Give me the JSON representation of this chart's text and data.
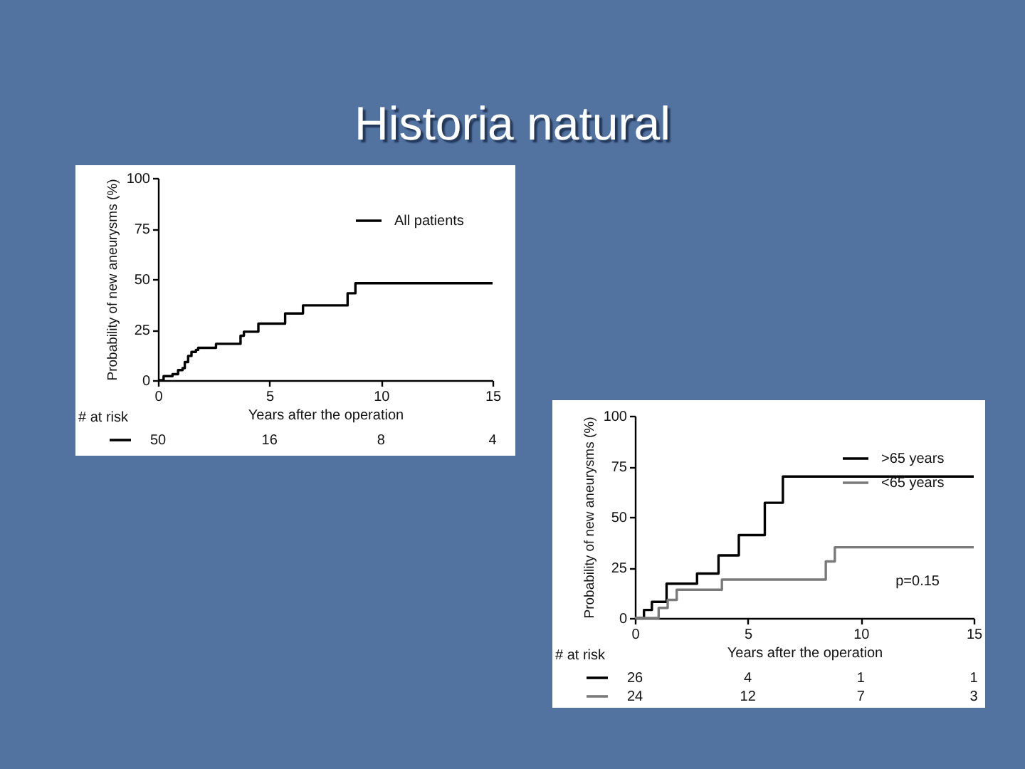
{
  "chart_data": [
    {
      "type": "step",
      "title": "Historia natural",
      "xlabel": "Years after the operation",
      "ylabel": "Probability of new aneurysms (%)",
      "xlim": [
        0,
        15
      ],
      "xticks": [
        0,
        5,
        10,
        15
      ],
      "ylim": [
        0,
        100
      ],
      "yticks": [
        0,
        25,
        50,
        75,
        100
      ],
      "legend": "top right",
      "series": [
        {
          "name": "All patients",
          "color": "#000000",
          "x": [
            0,
            0.25,
            0.65,
            0.9,
            1.1,
            1.2,
            1.35,
            1.5,
            1.7,
            1.8,
            2.6,
            3.7,
            3.85,
            4.5,
            5.7,
            6.5,
            8.5,
            8.85,
            15
          ],
          "values": [
            0,
            2,
            3,
            5,
            6,
            9,
            12,
            14,
            15,
            16,
            18,
            22,
            24,
            28,
            33,
            37,
            43,
            48,
            48
          ]
        }
      ],
      "annotations": [
        "# at risk",
        "50",
        "16",
        "8",
        "4"
      ]
    },
    {
      "type": "step",
      "xlabel": "Years after the operation",
      "ylabel": "Probability of new aneurysms (%)",
      "xlim": [
        0,
        15
      ],
      "xticks": [
        0,
        5,
        10,
        15
      ],
      "ylim": [
        0,
        100
      ],
      "yticks": [
        0,
        25,
        50,
        75,
        100
      ],
      "legend": "top right",
      "series": [
        {
          "name": ">65 years",
          "color": "#000000",
          "x": [
            0,
            0.4,
            0.75,
            1.4,
            2.75,
            3.7,
            4.6,
            5.75,
            6.55,
            15
          ],
          "values": [
            0,
            4,
            8,
            17,
            22,
            31,
            41,
            57,
            70,
            70
          ]
        },
        {
          "name": "<65 years",
          "color": "#7a7a7a",
          "x": [
            0,
            1.05,
            1.45,
            1.85,
            3.85,
            8.45,
            8.85,
            15
          ],
          "values": [
            0,
            5,
            9,
            14,
            19,
            28,
            35,
            35
          ]
        }
      ],
      "annotations": [
        "# at risk",
        "26",
        "4",
        "1",
        "1",
        "24",
        "12",
        "7",
        "3",
        "p=0.15"
      ]
    }
  ]
}
